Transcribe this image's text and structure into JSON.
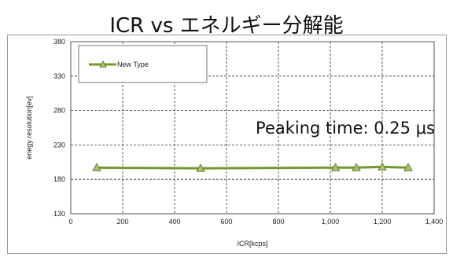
{
  "title": "ICR vs エネルギー分解能",
  "chart_data": {
    "type": "line",
    "title": "ICR vs エネルギー分解能",
    "xlabel": "ICR[kcps]",
    "ylabel": "enegy resolution[ev]",
    "xlim": [
      0,
      1400
    ],
    "ylim": [
      130,
      380
    ],
    "x_ticks": [
      0,
      200,
      400,
      600,
      800,
      1000,
      1200,
      1400
    ],
    "x_tick_labels": [
      "0",
      "200",
      "400",
      "600",
      "800",
      "1,000",
      "1,200",
      "1,400"
    ],
    "y_ticks": [
      130,
      180,
      230,
      280,
      330,
      380
    ],
    "grid": true,
    "legend_position": "top-left",
    "series": [
      {
        "name": "New Type",
        "color": "#6f9a2d",
        "marker": "triangle",
        "x": [
          100,
          500,
          1020,
          1100,
          1200,
          1300
        ],
        "y": [
          197,
          196,
          197,
          197,
          198,
          197
        ]
      }
    ],
    "annotation": "Peaking time: 0.25 μs"
  }
}
